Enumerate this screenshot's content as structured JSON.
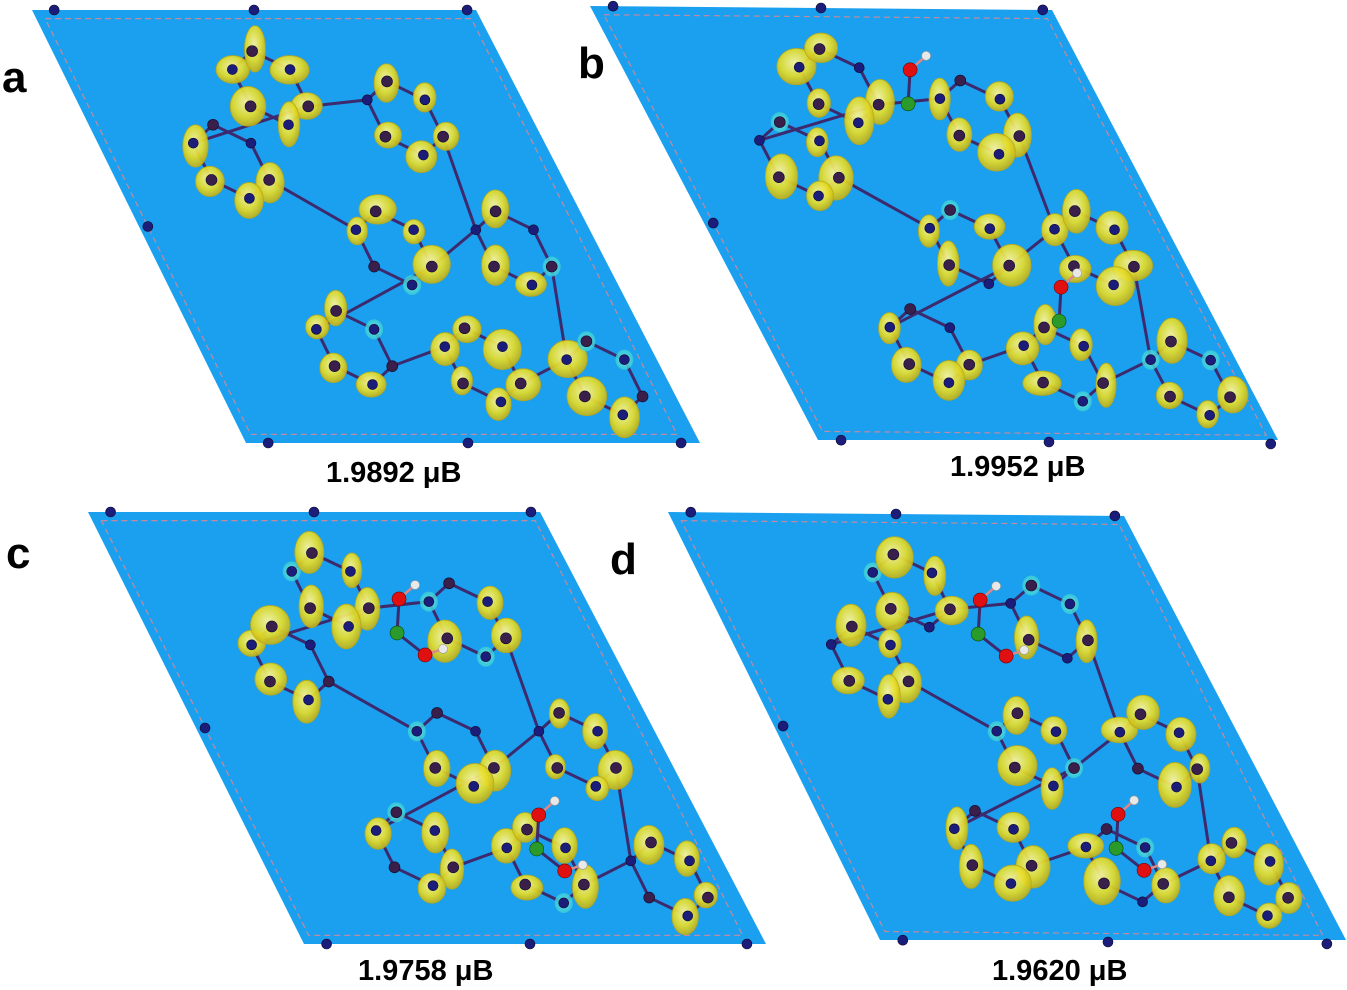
{
  "figure": {
    "panels": [
      {
        "letter": "a",
        "caption": "1.9892 μB"
      },
      {
        "letter": "b",
        "caption": "1.9952 μB"
      },
      {
        "letter": "c",
        "caption": "1.9758 μB"
      },
      {
        "letter": "d",
        "caption": "1.9620 μB"
      }
    ]
  },
  "colors": {
    "background": "#1aa0ef",
    "isosurface": "#e6de2a",
    "isosurface_edge": "#b9a818",
    "depletion": "#27c7cf",
    "bond": "#3d2a6e",
    "nitrogen": "#1c1c7a",
    "carbon": "#3a1f4a",
    "boron": "#2a9a2a",
    "oxygen": "#e01010",
    "hydrogen": "#e8e8e8",
    "cell_border": "#c08aa0"
  }
}
